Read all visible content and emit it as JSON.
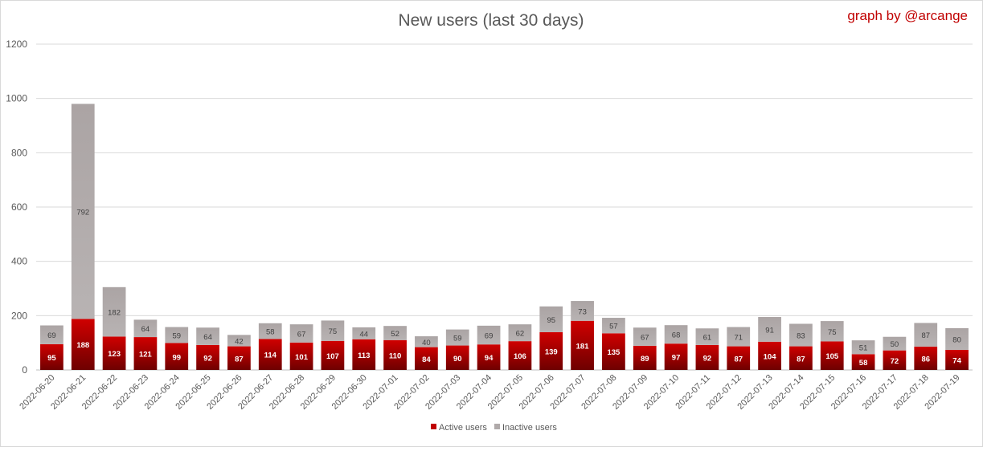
{
  "chart_data": {
    "type": "bar",
    "stacked": true,
    "title": "New users (last 30 days)",
    "watermark": "graph by @arcange",
    "categories": [
      "2022-06-20",
      "2022-06-21",
      "2022-06-22",
      "2022-06-23",
      "2022-06-24",
      "2022-06-25",
      "2022-06-26",
      "2022-06-27",
      "2022-06-28",
      "2022-06-29",
      "2022-06-30",
      "2022-07-01",
      "2022-07-02",
      "2022-07-03",
      "2022-07-04",
      "2022-07-05",
      "2022-07-06",
      "2022-07-07",
      "2022-07-08",
      "2022-07-09",
      "2022-07-10",
      "2022-07-11",
      "2022-07-12",
      "2022-07-13",
      "2022-07-14",
      "2022-07-15",
      "2022-07-16",
      "2022-07-17",
      "2022-07-18",
      "2022-07-19"
    ],
    "series": [
      {
        "name": "Active users",
        "color": "#c00000",
        "values": [
          95,
          188,
          123,
          121,
          99,
          92,
          87,
          114,
          101,
          107,
          113,
          110,
          84,
          90,
          94,
          106,
          139,
          181,
          135,
          89,
          97,
          92,
          87,
          104,
          87,
          105,
          58,
          72,
          86,
          74
        ]
      },
      {
        "name": "Inactive users",
        "color": "#b0aaaa",
        "values": [
          69,
          792,
          182,
          64,
          59,
          64,
          42,
          58,
          67,
          75,
          44,
          52,
          40,
          59,
          69,
          62,
          95,
          73,
          57,
          67,
          68,
          61,
          71,
          91,
          83,
          75,
          51,
          50,
          87,
          80
        ]
      }
    ],
    "ylim": [
      0,
      1200
    ],
    "yticks": [
      0,
      200,
      400,
      600,
      800,
      1000,
      1200
    ],
    "grid": true,
    "legend": "bottom-center"
  }
}
